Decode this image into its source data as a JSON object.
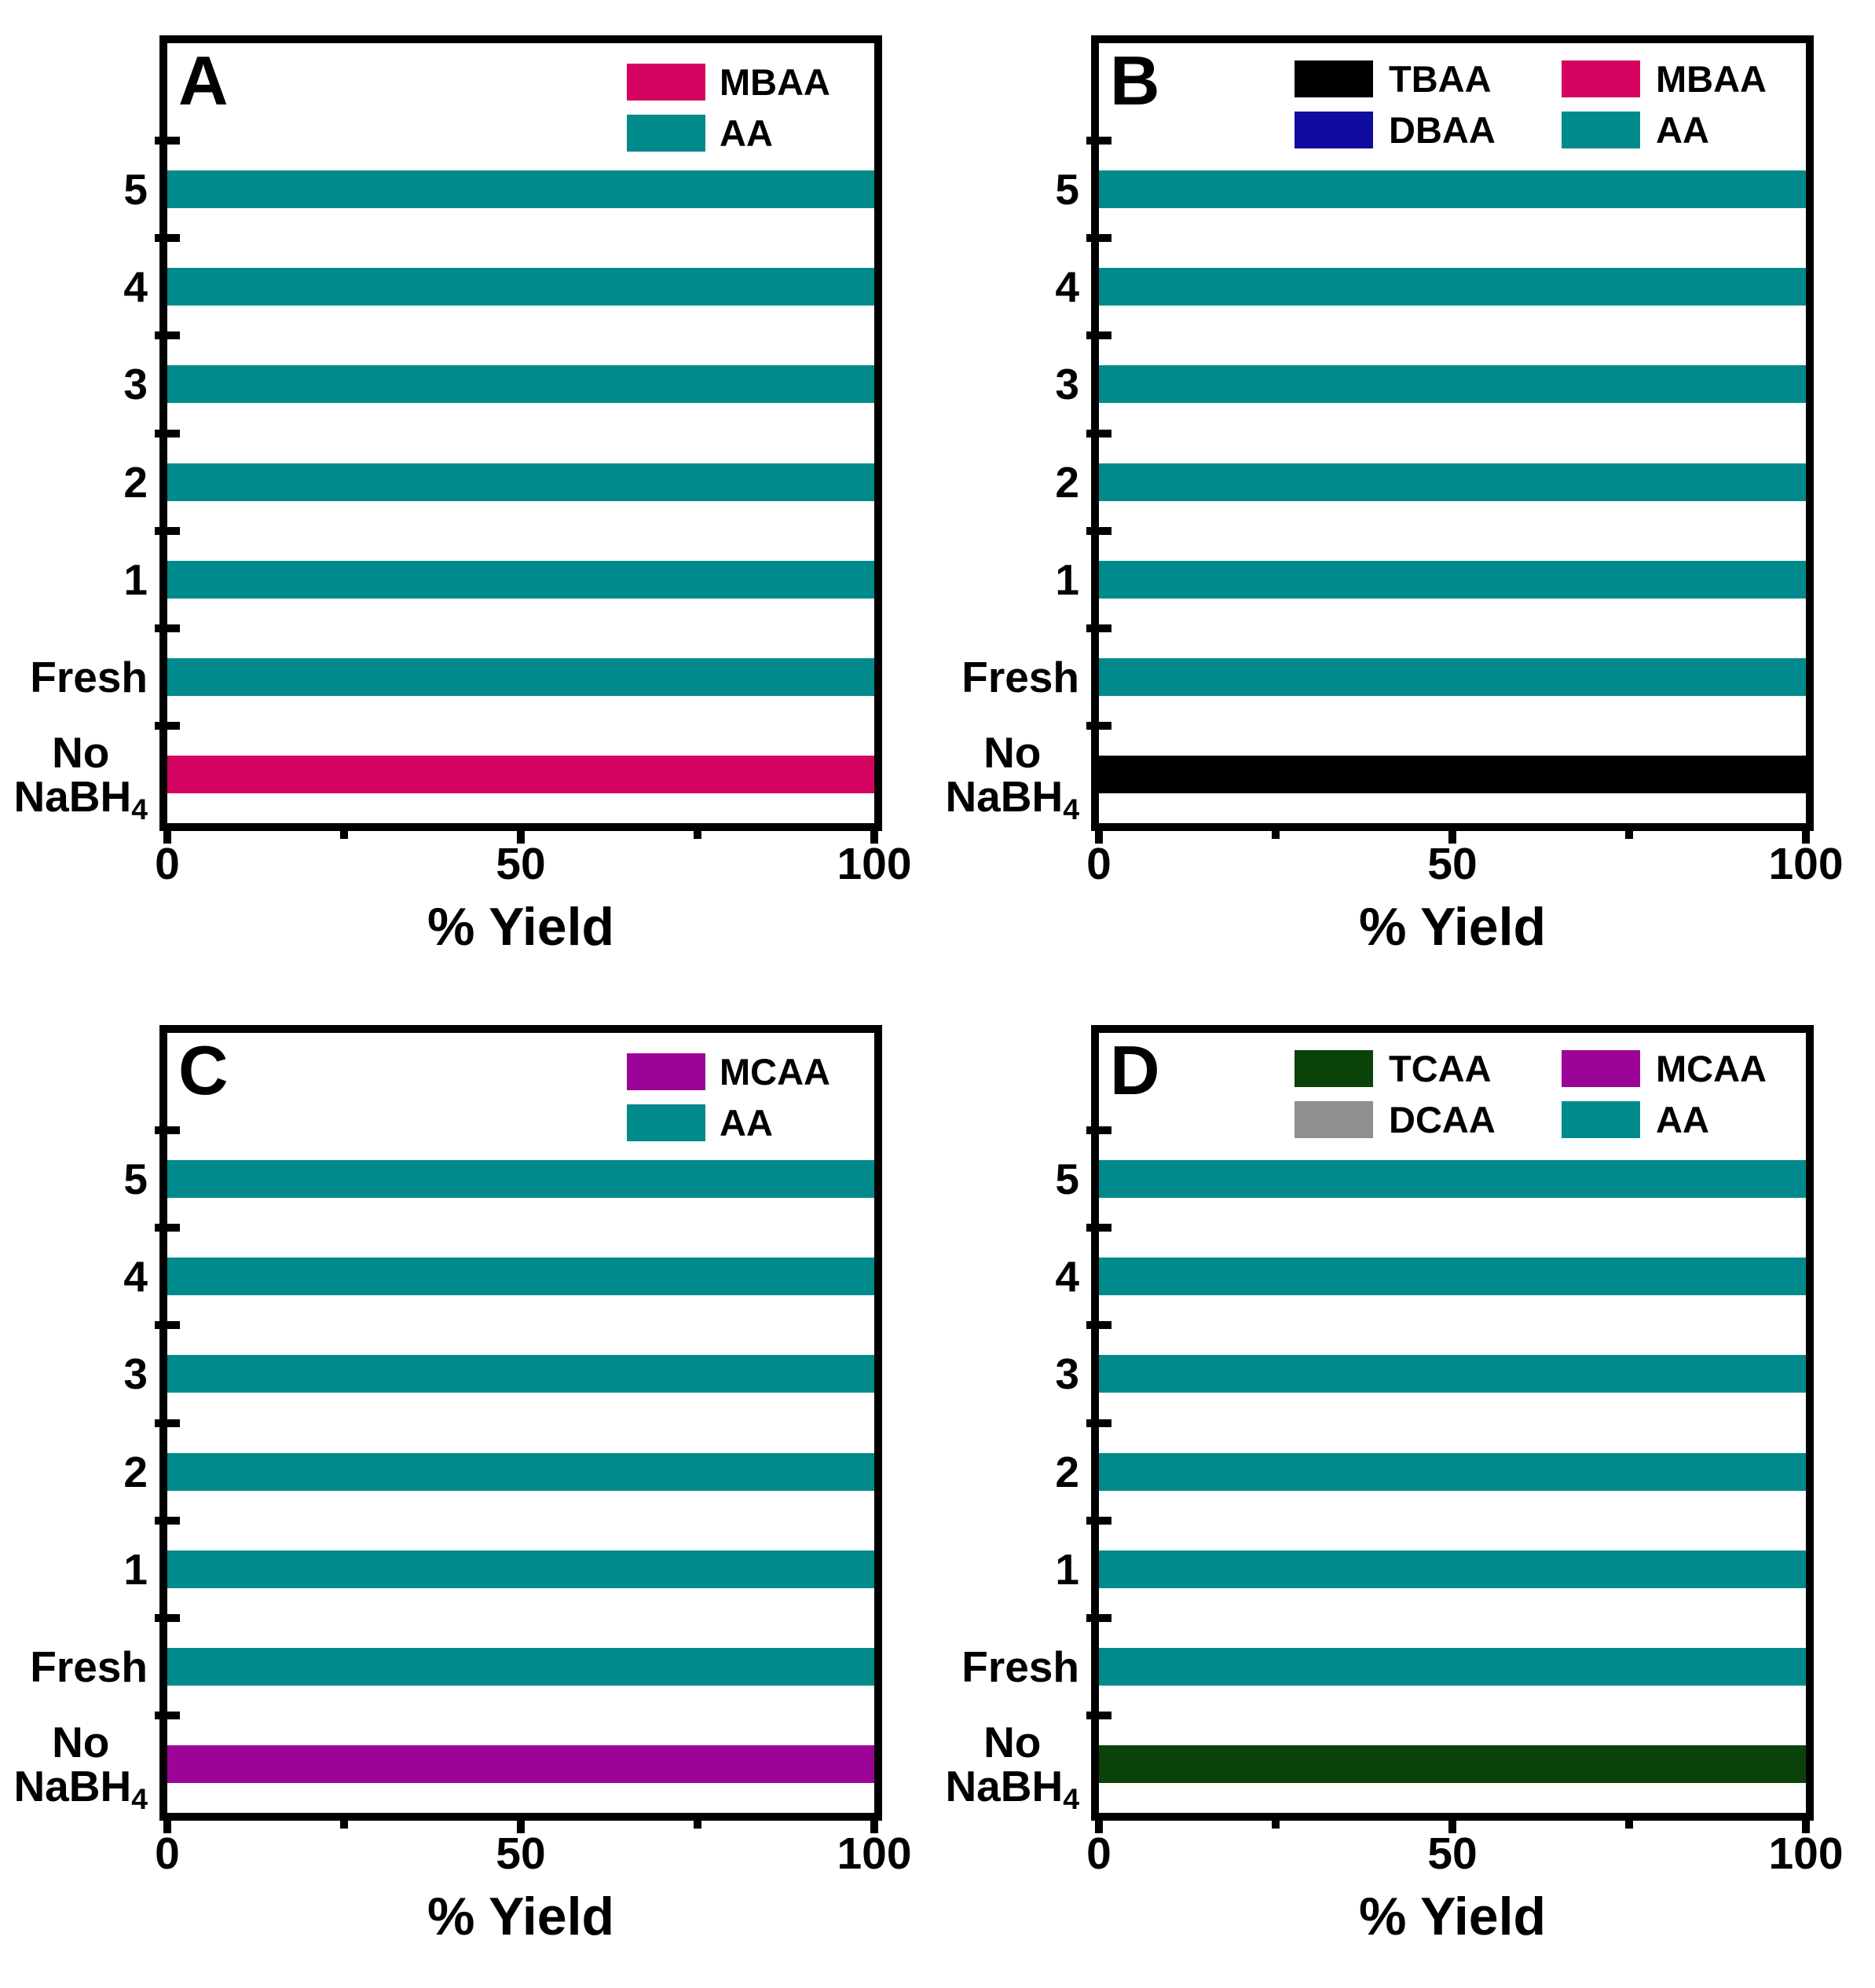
{
  "figure": {
    "background": "#FFFFFF",
    "axis_color": "#000000"
  },
  "series_colors": {
    "AA": "#008A8B",
    "MBAA": "#D40460",
    "DBAA": "#100CA0",
    "TBAA": "#000000",
    "MCAA": "#9C0497",
    "DCAA": "#8F8F8F",
    "TCAA": "#0B4209"
  },
  "chart_data": [
    {
      "type": "bar",
      "orientation": "horizontal",
      "panel_label": "A",
      "xlabel": "% Yield",
      "xlim": [
        0,
        100
      ],
      "x_major_ticks": [
        0,
        50,
        100
      ],
      "x_minor_ticks": [
        25,
        75
      ],
      "categories": [
        {
          "label": "5"
        },
        {
          "label": "4"
        },
        {
          "label": "3"
        },
        {
          "label": "2"
        },
        {
          "label": "1"
        },
        {
          "label": "Fresh"
        },
        {
          "label_text": "No NaBH4",
          "label_lines": [
            "No",
            "NaBH"
          ],
          "label_subscript": "4"
        }
      ],
      "values": [
        100,
        100,
        100,
        100,
        100,
        100,
        100
      ],
      "series_by_category": [
        "AA",
        "AA",
        "AA",
        "AA",
        "AA",
        "AA",
        "MBAA"
      ],
      "legend_columns": 1,
      "legend": [
        {
          "label": "MBAA",
          "color": "#D40460"
        },
        {
          "label": "AA",
          "color": "#008A8B"
        }
      ]
    },
    {
      "type": "bar",
      "orientation": "horizontal",
      "panel_label": "B",
      "xlabel": "% Yield",
      "xlim": [
        0,
        100
      ],
      "x_major_ticks": [
        0,
        50,
        100
      ],
      "x_minor_ticks": [
        25,
        75
      ],
      "categories": [
        {
          "label": "5"
        },
        {
          "label": "4"
        },
        {
          "label": "3"
        },
        {
          "label": "2"
        },
        {
          "label": "1"
        },
        {
          "label": "Fresh"
        },
        {
          "label_text": "No NaBH4",
          "label_lines": [
            "No",
            "NaBH"
          ],
          "label_subscript": "4"
        }
      ],
      "values": [
        100,
        100,
        100,
        100,
        100,
        100,
        100
      ],
      "series_by_category": [
        "AA",
        "AA",
        "AA",
        "AA",
        "AA",
        "AA",
        "TBAA"
      ],
      "legend_columns": 2,
      "legend": [
        {
          "label": "TBAA",
          "color": "#000000"
        },
        {
          "label": "MBAA",
          "color": "#D40460"
        },
        {
          "label": "DBAA",
          "color": "#100CA0"
        },
        {
          "label": "AA",
          "color": "#008A8B"
        }
      ]
    },
    {
      "type": "bar",
      "orientation": "horizontal",
      "panel_label": "C",
      "xlabel": "% Yield",
      "xlim": [
        0,
        100
      ],
      "x_major_ticks": [
        0,
        50,
        100
      ],
      "x_minor_ticks": [
        25,
        75
      ],
      "categories": [
        {
          "label": "5"
        },
        {
          "label": "4"
        },
        {
          "label": "3"
        },
        {
          "label": "2"
        },
        {
          "label": "1"
        },
        {
          "label": "Fresh"
        },
        {
          "label_text": "No NaBH4",
          "label_lines": [
            "No",
            "NaBH"
          ],
          "label_subscript": "4"
        }
      ],
      "values": [
        100,
        100,
        100,
        100,
        100,
        100,
        100
      ],
      "series_by_category": [
        "AA",
        "AA",
        "AA",
        "AA",
        "AA",
        "AA",
        "MCAA"
      ],
      "legend_columns": 1,
      "legend": [
        {
          "label": "MCAA",
          "color": "#9C0497"
        },
        {
          "label": "AA",
          "color": "#008A8B"
        }
      ]
    },
    {
      "type": "bar",
      "orientation": "horizontal",
      "panel_label": "D",
      "xlabel": "% Yield",
      "xlim": [
        0,
        100
      ],
      "x_major_ticks": [
        0,
        50,
        100
      ],
      "x_minor_ticks": [
        25,
        75
      ],
      "categories": [
        {
          "label": "5"
        },
        {
          "label": "4"
        },
        {
          "label": "3"
        },
        {
          "label": "2"
        },
        {
          "label": "1"
        },
        {
          "label": "Fresh"
        },
        {
          "label_text": "No NaBH4",
          "label_lines": [
            "No",
            "NaBH"
          ],
          "label_subscript": "4"
        }
      ],
      "values": [
        100,
        100,
        100,
        100,
        100,
        100,
        100
      ],
      "series_by_category": [
        "AA",
        "AA",
        "AA",
        "AA",
        "AA",
        "AA",
        "TCAA"
      ],
      "legend_columns": 2,
      "legend": [
        {
          "label": "TCAA",
          "color": "#0B4209"
        },
        {
          "label": "MCAA",
          "color": "#9C0497"
        },
        {
          "label": "DCAA",
          "color": "#8F8F8F"
        },
        {
          "label": "AA",
          "color": "#008A8B"
        }
      ]
    }
  ]
}
